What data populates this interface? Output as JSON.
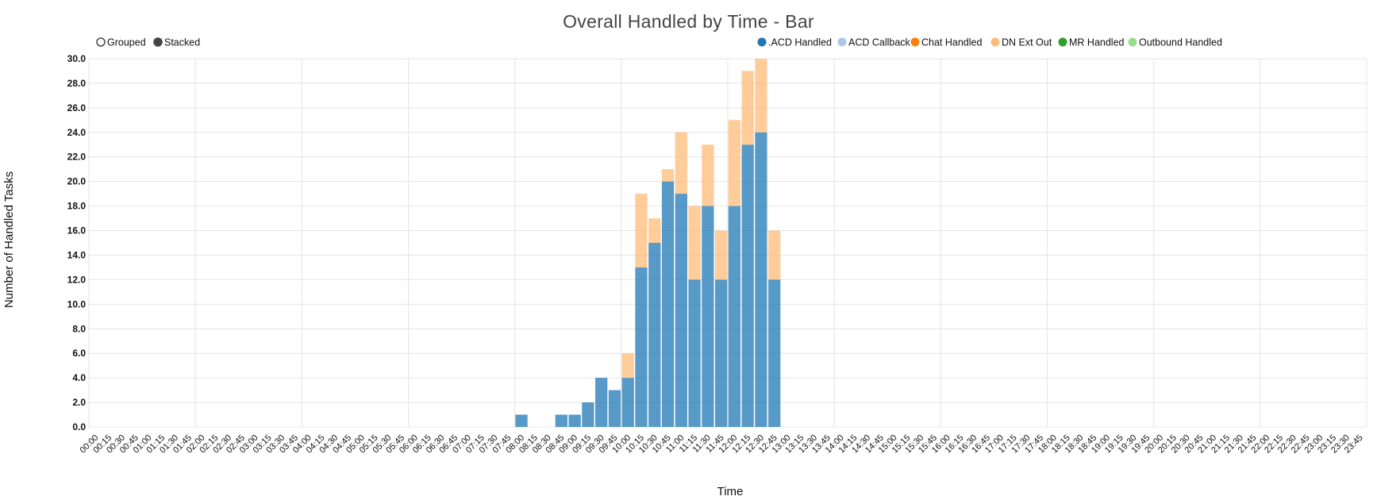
{
  "chart_data": {
    "type": "bar",
    "stacked": true,
    "title": "Overall Handled by Time - Bar",
    "xlabel": "Time",
    "ylabel": "Number of Handled Tasks",
    "ylim": [
      0,
      30
    ],
    "yticks": [
      "0.0",
      "2.0",
      "4.0",
      "6.0",
      "8.0",
      "10.0",
      "12.0",
      "14.0",
      "16.0",
      "18.0",
      "20.0",
      "22.0",
      "24.0",
      "26.0",
      "28.0",
      "30.0"
    ],
    "grid": true,
    "legend_position": "top-right",
    "mode_controls": [
      {
        "label": "Grouped",
        "selected": false
      },
      {
        "label": "Stacked",
        "selected": true
      }
    ],
    "categories": [
      "00:00",
      "00:15",
      "00:30",
      "00:45",
      "01:00",
      "01:15",
      "01:30",
      "01:45",
      "02:00",
      "02:15",
      "02:30",
      "02:45",
      "03:00",
      "03:15",
      "03:30",
      "03:45",
      "04:00",
      "04:15",
      "04:30",
      "04:45",
      "05:00",
      "05:15",
      "05:30",
      "05:45",
      "06:00",
      "06:15",
      "06:30",
      "06:45",
      "07:00",
      "07:15",
      "07:30",
      "07:45",
      "08:00",
      "08:15",
      "08:30",
      "08:45",
      "09:00",
      "09:15",
      "09:30",
      "09:45",
      "10:00",
      "10:15",
      "10:30",
      "10:45",
      "11:00",
      "11:15",
      "11:30",
      "11:45",
      "12:00",
      "12:15",
      "12:30",
      "12:45",
      "13:00",
      "13:15",
      "13:30",
      "13:45",
      "14:00",
      "14:15",
      "14:30",
      "14:45",
      "15:00",
      "15:15",
      "15:30",
      "15:45",
      "16:00",
      "16:15",
      "16:30",
      "16:45",
      "17:00",
      "17:15",
      "17:30",
      "17:45",
      "18:00",
      "18:15",
      "18:30",
      "18:45",
      "19:00",
      "19:15",
      "19:30",
      "19:45",
      "20:00",
      "20:15",
      "20:30",
      "20:45",
      "21:00",
      "21:15",
      "21:30",
      "21:45",
      "22:00",
      "22:15",
      "22:30",
      "22:45",
      "23:00",
      "23:15",
      "23:30",
      "23:45"
    ],
    "series": [
      {
        "name": ".ACD Handled",
        "color": "#1f77b4",
        "values": {
          "08:00": 1,
          "08:45": 1,
          "09:00": 1,
          "09:15": 2,
          "09:30": 4,
          "09:45": 3,
          "10:00": 4,
          "10:15": 13,
          "10:30": 15,
          "10:45": 20,
          "11:00": 19,
          "11:15": 12,
          "11:30": 18,
          "11:45": 12,
          "12:00": 18,
          "12:15": 23,
          "12:30": 24,
          "12:45": 12
        }
      },
      {
        "name": "ACD Callback",
        "color": "#aec7e8",
        "values": {}
      },
      {
        "name": "Chat Handled",
        "color": "#ff7f0e",
        "values": {}
      },
      {
        "name": "DN Ext Out",
        "color": "#ffbb78",
        "values": {
          "10:00": 2,
          "10:15": 6,
          "10:30": 2,
          "10:45": 1,
          "11:00": 5,
          "11:15": 6,
          "11:30": 5,
          "11:45": 4,
          "12:00": 7,
          "12:15": 6,
          "12:30": 6,
          "12:45": 4
        }
      },
      {
        "name": "MR Handled",
        "color": "#2ca02c",
        "values": {}
      },
      {
        "name": "Outbound Handled",
        "color": "#98df8a",
        "values": {}
      }
    ]
  }
}
